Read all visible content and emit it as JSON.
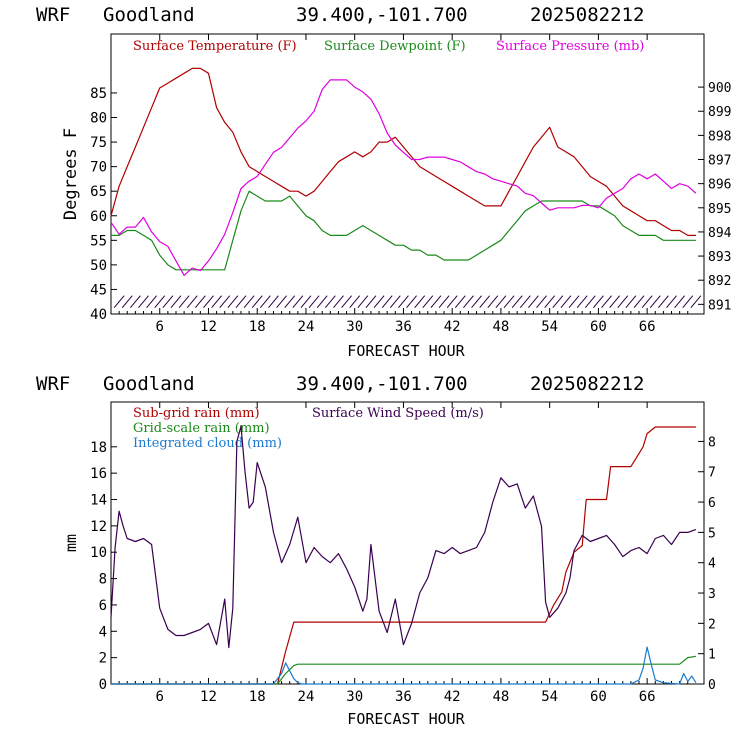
{
  "charts": [
    {
      "header": {
        "model": "WRF",
        "station": "Goodland",
        "latlon": "39.400,-101.700",
        "init": "2025082212"
      },
      "xlabel": "FORECAST HOUR",
      "ylabel": "Degrees F",
      "legend": [
        {
          "label": "Surface Temperature (F)",
          "color": "#b00000"
        },
        {
          "label": "Surface Dewpoint (F)",
          "color": "#1a8a1a"
        },
        {
          "label": "Surface Pressure (mb)",
          "color": "#e000e0"
        }
      ]
    },
    {
      "header": {
        "model": "WRF",
        "station": "Goodland",
        "latlon": "39.400,-101.700",
        "init": "2025082212"
      },
      "xlabel": "FORECAST HOUR",
      "ylabel": "mm",
      "legend": [
        {
          "label": "Sub-grid rain (mm)",
          "color": "#b00000"
        },
        {
          "label": "Grid-scale rain (mm)",
          "color": "#1a8a1a"
        },
        {
          "label": "Integrated cloud (mm)",
          "color": "#1a7ad0"
        },
        {
          "label": "Surface Wind Speed (m/s)",
          "color": "#3a0050"
        }
      ]
    }
  ],
  "chart_data": [
    {
      "type": "line",
      "xlim": [
        0,
        73
      ],
      "x_ticks": [
        6,
        12,
        18,
        24,
        30,
        36,
        42,
        48,
        54,
        60,
        66
      ],
      "ylim": [
        40,
        97
      ],
      "y_ticks": [
        40,
        45,
        50,
        55,
        60,
        65,
        70,
        75,
        80,
        85
      ],
      "y2lim": [
        890.6,
        902.2
      ],
      "y2_ticks": [
        891,
        892,
        893,
        894,
        895,
        896,
        897,
        898,
        899,
        900
      ],
      "series": [
        {
          "name": "Surface Temperature (F)",
          "color": "#b00000",
          "axis": "left",
          "x": [
            0,
            1,
            2,
            3,
            4,
            5,
            6,
            7,
            8,
            9,
            10,
            11,
            12,
            13,
            14,
            15,
            16,
            17,
            18,
            19,
            20,
            21,
            22,
            23,
            24,
            25,
            26,
            27,
            28,
            29,
            30,
            31,
            32,
            33,
            34,
            35,
            36,
            37,
            38,
            39,
            40,
            41,
            42,
            43,
            44,
            45,
            46,
            47,
            48,
            49,
            50,
            51,
            52,
            53,
            54,
            55,
            56,
            57,
            58,
            59,
            60,
            61,
            62,
            63,
            64,
            65,
            66,
            67,
            68,
            69,
            70,
            71,
            72
          ],
          "values": [
            60,
            66,
            70,
            74,
            78,
            82,
            86,
            87,
            88,
            89,
            90,
            90,
            89,
            82,
            79,
            77,
            73,
            70,
            69,
            68,
            67,
            66,
            65,
            65,
            64,
            65,
            67,
            69,
            71,
            72,
            73,
            72,
            73,
            75,
            75,
            76,
            74,
            72,
            70,
            69,
            68,
            67,
            66,
            65,
            64,
            63,
            62,
            62,
            62,
            65,
            68,
            71,
            74,
            76,
            78,
            74,
            73,
            72,
            70,
            68,
            67,
            66,
            64,
            62,
            61,
            60,
            59,
            59,
            58,
            57,
            57,
            56,
            56
          ]
        },
        {
          "name": "Surface Dewpoint (F)",
          "color": "#1a8a1a",
          "axis": "left",
          "x": [
            0,
            1,
            2,
            3,
            4,
            5,
            6,
            7,
            8,
            9,
            10,
            11,
            12,
            13,
            14,
            15,
            16,
            17,
            18,
            19,
            20,
            21,
            22,
            23,
            24,
            25,
            26,
            27,
            28,
            29,
            30,
            31,
            32,
            33,
            34,
            35,
            36,
            37,
            38,
            39,
            40,
            41,
            42,
            43,
            44,
            45,
            46,
            47,
            48,
            49,
            50,
            51,
            52,
            53,
            54,
            55,
            56,
            57,
            58,
            59,
            60,
            61,
            62,
            63,
            64,
            65,
            66,
            67,
            68,
            69,
            70,
            71,
            72
          ],
          "values": [
            56,
            56,
            57,
            57,
            56,
            55,
            52,
            50,
            49,
            49,
            49,
            49,
            49,
            49,
            49,
            55,
            61,
            65,
            64,
            63,
            63,
            63,
            64,
            62,
            60,
            59,
            57,
            56,
            56,
            56,
            57,
            58,
            57,
            56,
            55,
            54,
            54,
            53,
            53,
            52,
            52,
            51,
            51,
            51,
            51,
            52,
            53,
            54,
            55,
            57,
            59,
            61,
            62,
            63,
            63,
            63,
            63,
            63,
            63,
            62,
            62,
            61,
            60,
            58,
            57,
            56,
            56,
            56,
            55,
            55,
            55,
            55,
            55
          ]
        },
        {
          "name": "Surface Pressure (mb)",
          "color": "#e000e0",
          "axis": "right",
          "x": [
            0,
            1,
            2,
            3,
            4,
            5,
            6,
            7,
            8,
            9,
            10,
            11,
            12,
            13,
            14,
            15,
            16,
            17,
            18,
            19,
            20,
            21,
            22,
            23,
            24,
            25,
            26,
            27,
            28,
            29,
            30,
            31,
            32,
            33,
            34,
            35,
            36,
            37,
            38,
            39,
            40,
            41,
            42,
            43,
            44,
            45,
            46,
            47,
            48,
            49,
            50,
            51,
            52,
            53,
            54,
            55,
            56,
            57,
            58,
            59,
            60,
            61,
            62,
            63,
            64,
            65,
            66,
            67,
            68,
            69,
            70,
            71,
            72
          ],
          "values": [
            894.4,
            893.9,
            894.2,
            894.2,
            894.6,
            894.0,
            893.6,
            893.4,
            892.8,
            892.2,
            892.5,
            892.4,
            892.8,
            893.3,
            893.9,
            894.8,
            895.8,
            896.1,
            896.3,
            896.8,
            897.3,
            897.5,
            897.9,
            898.3,
            898.6,
            899.0,
            899.9,
            900.3,
            900.3,
            900.3,
            900.0,
            899.8,
            899.5,
            898.9,
            898.1,
            897.6,
            897.3,
            897.0,
            897.0,
            897.1,
            897.1,
            897.1,
            897.0,
            896.9,
            896.7,
            896.5,
            896.4,
            896.2,
            896.1,
            896.0,
            895.9,
            895.6,
            895.5,
            895.2,
            894.9,
            895.0,
            895.0,
            895.0,
            895.1,
            895.1,
            895.0,
            895.4,
            895.6,
            895.8,
            896.2,
            896.4,
            896.2,
            896.4,
            896.1,
            895.8,
            896.0,
            895.9,
            895.6
          ]
        }
      ],
      "wind_barbs": {
        "y_level": 42.5,
        "x": [
          1,
          2,
          3,
          4,
          5,
          6,
          7,
          8,
          9,
          10,
          11,
          12,
          13,
          14,
          15,
          16,
          17,
          18,
          19,
          20,
          21,
          22,
          23,
          24,
          25,
          26,
          27,
          28,
          29,
          30,
          31,
          32,
          33,
          34,
          35,
          36,
          37,
          38,
          39,
          40,
          41,
          42,
          43,
          44,
          45,
          46,
          47,
          48,
          49,
          50,
          51,
          52,
          53,
          54,
          55,
          56,
          57,
          58,
          59,
          60,
          61,
          62,
          63,
          64,
          65,
          66,
          67,
          68,
          69,
          70,
          71,
          72
        ]
      }
    },
    {
      "type": "line",
      "xlim": [
        0,
        73
      ],
      "x_ticks": [
        6,
        12,
        18,
        24,
        30,
        36,
        42,
        48,
        54,
        60,
        66
      ],
      "ylim": [
        0,
        21.4
      ],
      "y_ticks": [
        0,
        2,
        4,
        6,
        8,
        10,
        12,
        14,
        16,
        18
      ],
      "y2lim": [
        0,
        9.3
      ],
      "y2_ticks": [
        0,
        1,
        2,
        3,
        4,
        5,
        6,
        7,
        8
      ],
      "series": [
        {
          "name": "Sub-grid rain (mm)",
          "color": "#b00000",
          "axis": "left",
          "x": [
            0,
            20.5,
            21.5,
            22.5,
            53.5,
            54.5,
            55.5,
            56,
            57,
            58,
            58.5,
            61,
            61.5,
            64,
            64.5,
            65.5,
            66,
            67,
            71,
            72
          ],
          "values": [
            0,
            0,
            2.5,
            4.7,
            4.7,
            6,
            7,
            8.5,
            10,
            10.5,
            14,
            14,
            16.5,
            16.5,
            17,
            18,
            19,
            19.5,
            19.5,
            19.5
          ]
        },
        {
          "name": "Grid-scale rain (mm)",
          "color": "#1a8a1a",
          "axis": "left",
          "x": [
            0,
            20.5,
            21.5,
            22.5,
            23,
            70,
            71,
            72
          ],
          "values": [
            0,
            0,
            0.8,
            1.4,
            1.5,
            1.5,
            2,
            2.1
          ]
        },
        {
          "name": "Integrated cloud (mm)",
          "color": "#1a7ad0",
          "axis": "left",
          "x": [
            0,
            20,
            21,
            21.5,
            22,
            22.5,
            23,
            23.5,
            64,
            65,
            65.5,
            66,
            66.5,
            67,
            68,
            70,
            70.5,
            71,
            71.5,
            72
          ],
          "values": [
            0,
            0,
            0.8,
            1.6,
            1.0,
            0.4,
            0.1,
            0,
            0,
            0.3,
            1.2,
            2.8,
            1.5,
            0.3,
            0.1,
            0,
            0.8,
            0.2,
            0.6,
            0.1
          ]
        },
        {
          "name": "Surface Wind Speed (m/s)",
          "color": "#3a0050",
          "axis": "right",
          "x": [
            0,
            0.5,
            1,
            1.5,
            2,
            3,
            4,
            5,
            6,
            7,
            8,
            9,
            10,
            11,
            12,
            13,
            14,
            14.5,
            15,
            15.5,
            16,
            16.5,
            17,
            17.5,
            18,
            19,
            20,
            21,
            22,
            23,
            24,
            25,
            26,
            27,
            28,
            29,
            30,
            31,
            31.5,
            32,
            33,
            34,
            35,
            36,
            37,
            38,
            39,
            40,
            41,
            42,
            43,
            44,
            45,
            46,
            47,
            48,
            49,
            50,
            51,
            52,
            53,
            53.5,
            54,
            55,
            56,
            56.5,
            57,
            58,
            59,
            60,
            61,
            62,
            63,
            64,
            65,
            66,
            67,
            68,
            69,
            70,
            71,
            72
          ],
          "values": [
            2.2,
            4.5,
            5.7,
            5.2,
            4.8,
            4.7,
            4.8,
            4.6,
            2.5,
            1.8,
            1.6,
            1.6,
            1.7,
            1.8,
            2.0,
            1.3,
            2.8,
            1.2,
            2.5,
            8.0,
            8.5,
            7.0,
            5.8,
            6.0,
            7.3,
            6.5,
            5.0,
            4.0,
            4.6,
            5.5,
            4.0,
            4.5,
            4.2,
            4.0,
            4.3,
            3.8,
            3.2,
            2.4,
            2.8,
            4.6,
            2.4,
            1.7,
            2.8,
            1.3,
            2.0,
            3.0,
            3.5,
            4.4,
            4.3,
            4.5,
            4.3,
            4.4,
            4.5,
            5.0,
            6.0,
            6.8,
            6.5,
            6.6,
            5.8,
            6.2,
            5.2,
            2.7,
            2.2,
            2.5,
            3.0,
            3.5,
            4.4,
            4.9,
            4.7,
            4.8,
            4.9,
            4.6,
            4.2,
            4.4,
            4.5,
            4.3,
            4.8,
            4.9,
            4.6,
            5.0,
            5.0,
            5.1
          ]
        }
      ]
    }
  ]
}
